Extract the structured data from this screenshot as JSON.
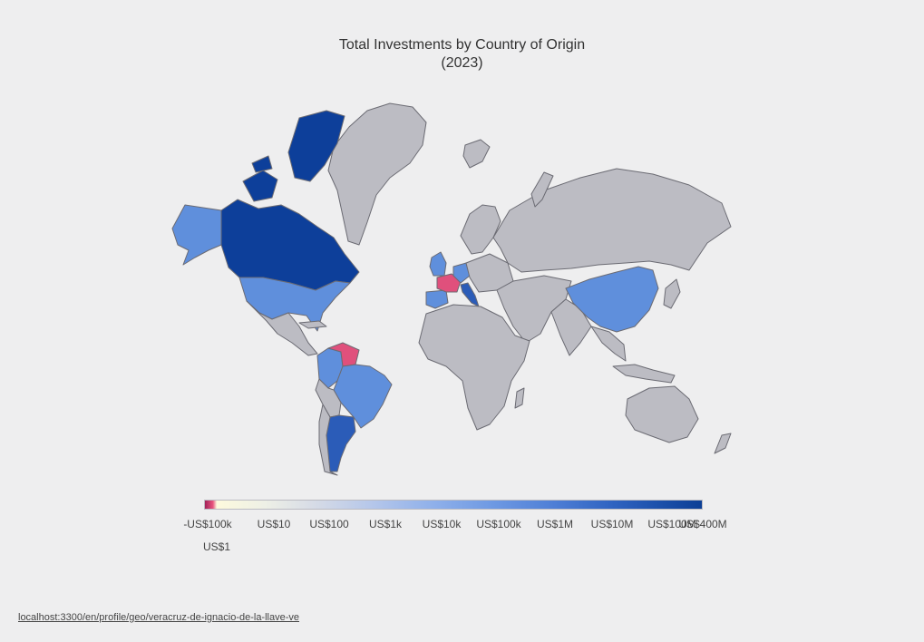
{
  "title": "Total Investments by Country of Origin",
  "subtitle": "(2023)",
  "colors": {
    "background": "#eeeeef",
    "no_data": "#bcbcc3",
    "border": "#6b6b73",
    "negative": "#e0507c",
    "scale_low": "#8fb0ea",
    "scale_mid": "#5f8fdc",
    "scale_high": "#2b5cb8",
    "scale_max": "#0d3f9a"
  },
  "legend": {
    "ticks": [
      "-US$100k",
      "US$10",
      "US$100",
      "US$1k",
      "US$10k",
      "US$100k",
      "US$1M",
      "US$10M",
      "US$100M",
      "US$400M"
    ],
    "extra_tick": "US$1"
  },
  "footer": {
    "link_text": "localhost:3300/en/profile/geo/veracruz-de-ignacio-de-la-llave-ve"
  },
  "map_data": {
    "type": "choropleth",
    "countries_with_data": [
      {
        "name": "Canada",
        "tier": "max"
      },
      {
        "name": "United States",
        "tier": "mid"
      },
      {
        "name": "Argentina",
        "tier": "high"
      },
      {
        "name": "Colombia",
        "tier": "mid"
      },
      {
        "name": "Brazil",
        "tier": "mid"
      },
      {
        "name": "Venezuela",
        "tier": "negative"
      },
      {
        "name": "France",
        "tier": "negative"
      },
      {
        "name": "Spain",
        "tier": "mid"
      },
      {
        "name": "Germany",
        "tier": "mid"
      },
      {
        "name": "United Kingdom",
        "tier": "mid"
      },
      {
        "name": "Italy",
        "tier": "high"
      },
      {
        "name": "China",
        "tier": "mid"
      }
    ]
  }
}
